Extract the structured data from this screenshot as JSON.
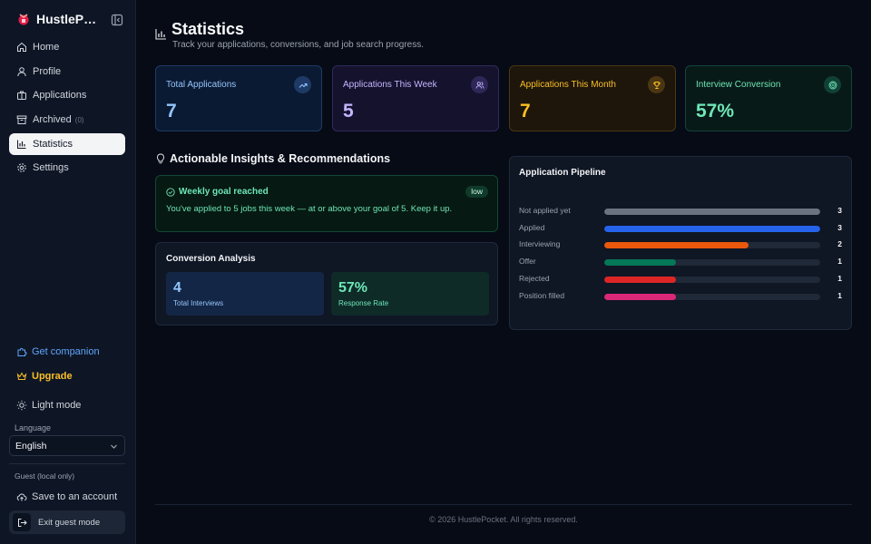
{
  "sidebar": {
    "brand": "HustlePocket",
    "items": [
      {
        "label": "Home",
        "icon": "home-icon"
      },
      {
        "label": "Profile",
        "icon": "user-icon"
      },
      {
        "label": "Applications",
        "icon": "briefcase-icon"
      },
      {
        "label": "Archived",
        "icon": "archive-icon",
        "count": "(0)"
      },
      {
        "label": "Statistics",
        "icon": "bar-chart-icon",
        "active": true
      },
      {
        "label": "Settings",
        "icon": "gear-icon"
      }
    ],
    "companion": "Get companion",
    "upgrade": "Upgrade",
    "light_mode": "Light mode",
    "language_label": "Language",
    "language_value": "English",
    "guest_label": "Guest (local only)",
    "save_account": "Save to an account",
    "exit_guest": "Exit guest mode"
  },
  "header": {
    "title": "Statistics",
    "subtitle": "Track your applications, conversions, and job search progress."
  },
  "stats": [
    {
      "label": "Total Applications",
      "value": "7",
      "icon": "trending-up-icon"
    },
    {
      "label": "Applications This Week",
      "value": "5",
      "icon": "users-icon"
    },
    {
      "label": "Applications This Month",
      "value": "7",
      "icon": "trophy-icon"
    },
    {
      "label": "Interview Conversion",
      "value": "57%",
      "icon": "target-icon"
    }
  ],
  "insights": {
    "title": "Actionable Insights & Recommendations",
    "goal_title": "Weekly goal reached",
    "goal_badge": "low",
    "goal_text": "You've applied to 5 jobs this week — at or above your goal of 5. Keep it up."
  },
  "conversion": {
    "title": "Conversion Analysis",
    "interviews_value": "4",
    "interviews_label": "Total Interviews",
    "response_value": "57%",
    "response_label": "Response Rate"
  },
  "pipeline": {
    "title": "Application Pipeline",
    "max": 3,
    "rows": [
      {
        "label": "Not applied yet",
        "count": 3,
        "color": "#6b7280"
      },
      {
        "label": "Applied",
        "count": 3,
        "color": "#2563eb"
      },
      {
        "label": "Interviewing",
        "count": 2,
        "color": "#ea580c"
      },
      {
        "label": "Offer",
        "count": 1,
        "color": "#047857"
      },
      {
        "label": "Rejected",
        "count": 1,
        "color": "#dc2626"
      },
      {
        "label": "Position filled",
        "count": 1,
        "color": "#db2777"
      }
    ]
  },
  "footer": {
    "text": "© 2026 HustlePocket. All rights reserved."
  }
}
